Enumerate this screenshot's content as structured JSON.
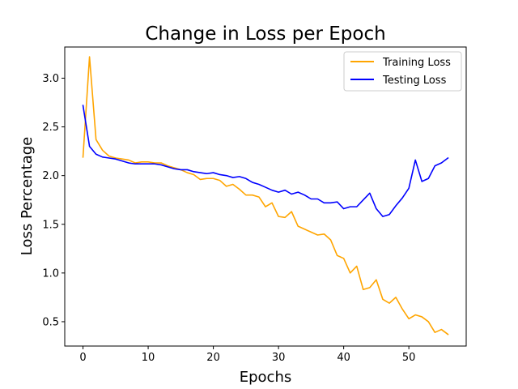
{
  "chart_data": {
    "type": "line",
    "title": "Change in Loss per Epoch",
    "xlabel": "Epochs",
    "ylabel": "Loss Percentage",
    "xlim": [
      -2.8,
      58.8
    ],
    "ylim": [
      0.25,
      3.32
    ],
    "xticks": [
      0,
      10,
      20,
      30,
      40,
      50
    ],
    "yticks": [
      0.5,
      1.0,
      1.5,
      2.0,
      2.5,
      3.0
    ],
    "xtick_labels": [
      "0",
      "10",
      "20",
      "30",
      "40",
      "50"
    ],
    "ytick_labels": [
      "0.5",
      "1.0",
      "1.5",
      "2.0",
      "2.5",
      "3.0"
    ],
    "grid": false,
    "legend_position": "top-right",
    "x": [
      0,
      1,
      2,
      3,
      4,
      5,
      6,
      7,
      8,
      9,
      10,
      11,
      12,
      13,
      14,
      15,
      16,
      17,
      18,
      19,
      20,
      21,
      22,
      23,
      24,
      25,
      26,
      27,
      28,
      29,
      30,
      31,
      32,
      33,
      34,
      35,
      36,
      37,
      38,
      39,
      40,
      41,
      42,
      43,
      44,
      45,
      46,
      47,
      48,
      49,
      50,
      51,
      52,
      53,
      54,
      55,
      56
    ],
    "series": [
      {
        "name": "Training Loss",
        "color": "#ffa500",
        "values": [
          2.19,
          3.22,
          2.37,
          2.26,
          2.2,
          2.18,
          2.17,
          2.16,
          2.13,
          2.14,
          2.14,
          2.13,
          2.13,
          2.1,
          2.08,
          2.06,
          2.03,
          2.01,
          1.96,
          1.97,
          1.97,
          1.95,
          1.89,
          1.91,
          1.86,
          1.8,
          1.8,
          1.78,
          1.68,
          1.72,
          1.58,
          1.57,
          1.63,
          1.48,
          1.45,
          1.42,
          1.39,
          1.4,
          1.34,
          1.18,
          1.15,
          1.0,
          1.07,
          0.83,
          0.85,
          0.93,
          0.73,
          0.69,
          0.75,
          0.63,
          0.53,
          0.57,
          0.55,
          0.5,
          0.39,
          0.42,
          0.37
        ]
      },
      {
        "name": "Testing Loss",
        "color": "#0000ff",
        "values": [
          2.72,
          2.3,
          2.22,
          2.19,
          2.18,
          2.17,
          2.15,
          2.13,
          2.12,
          2.12,
          2.12,
          2.12,
          2.11,
          2.09,
          2.07,
          2.06,
          2.06,
          2.04,
          2.03,
          2.02,
          2.03,
          2.01,
          2.0,
          1.98,
          1.99,
          1.97,
          1.93,
          1.91,
          1.88,
          1.85,
          1.83,
          1.85,
          1.81,
          1.83,
          1.8,
          1.76,
          1.76,
          1.72,
          1.72,
          1.73,
          1.66,
          1.68,
          1.68,
          1.75,
          1.82,
          1.66,
          1.58,
          1.6,
          1.69,
          1.77,
          1.87,
          2.16,
          1.94,
          1.97,
          2.1,
          2.13,
          2.18
        ]
      }
    ]
  }
}
